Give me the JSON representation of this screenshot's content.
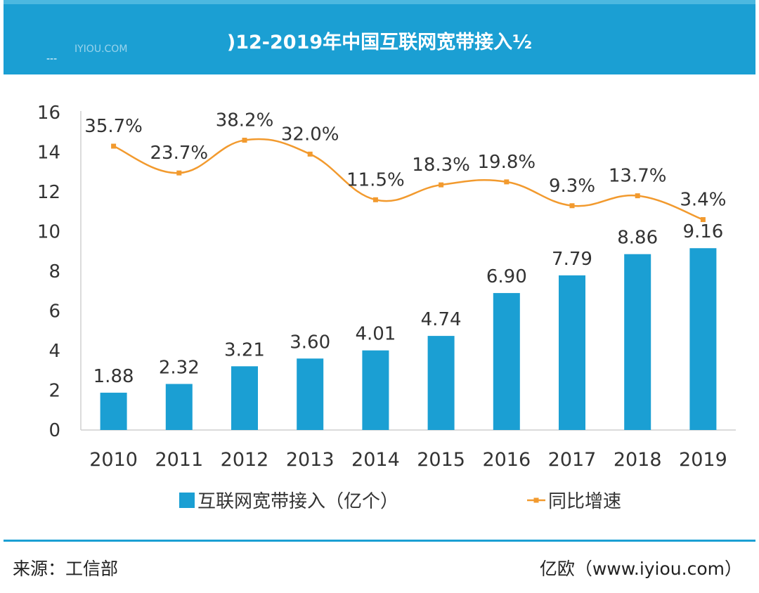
{
  "header": {
    "title": ")12-2019年中国互联网宽带接入½",
    "watermark": "IYIOU.COM",
    "dash": "---"
  },
  "chart_data": {
    "type": "bar",
    "categories": [
      "2010",
      "2011",
      "2012",
      "2013",
      "2014",
      "2015",
      "2016",
      "2017",
      "2018",
      "2019"
    ],
    "series": [
      {
        "name": "互联网宽带接入（亿个）",
        "type": "bar",
        "color": "#1b9fd3",
        "values": [
          1.88,
          2.32,
          3.21,
          3.6,
          4.01,
          4.74,
          6.9,
          7.79,
          8.86,
          9.16
        ],
        "labels": [
          "1.88",
          "2.32",
          "3.21",
          "3.60",
          "4.01",
          "4.74",
          "6.90",
          "7.79",
          "8.86",
          "9.16"
        ]
      },
      {
        "name": "同比增速",
        "type": "line",
        "color": "#f29a2e",
        "plot_values": [
          14.3,
          12.95,
          14.6,
          13.9,
          11.6,
          12.35,
          12.5,
          11.3,
          11.8,
          10.6
        ],
        "labels": [
          "35.7%",
          "23.7%",
          "38.2%",
          "32.0%",
          "11.5%",
          "18.3%",
          "19.8%",
          "9.3%",
          "13.7%",
          "3.4%"
        ]
      }
    ],
    "yticks": [
      "0",
      "2",
      "4",
      "6",
      "8",
      "10",
      "12",
      "14",
      "16"
    ],
    "ylim": [
      0,
      16
    ],
    "legend": "bottom",
    "grid": false
  },
  "footer": {
    "source": "来源：工信部",
    "credit": "亿欧（www.iyiou.com）"
  }
}
